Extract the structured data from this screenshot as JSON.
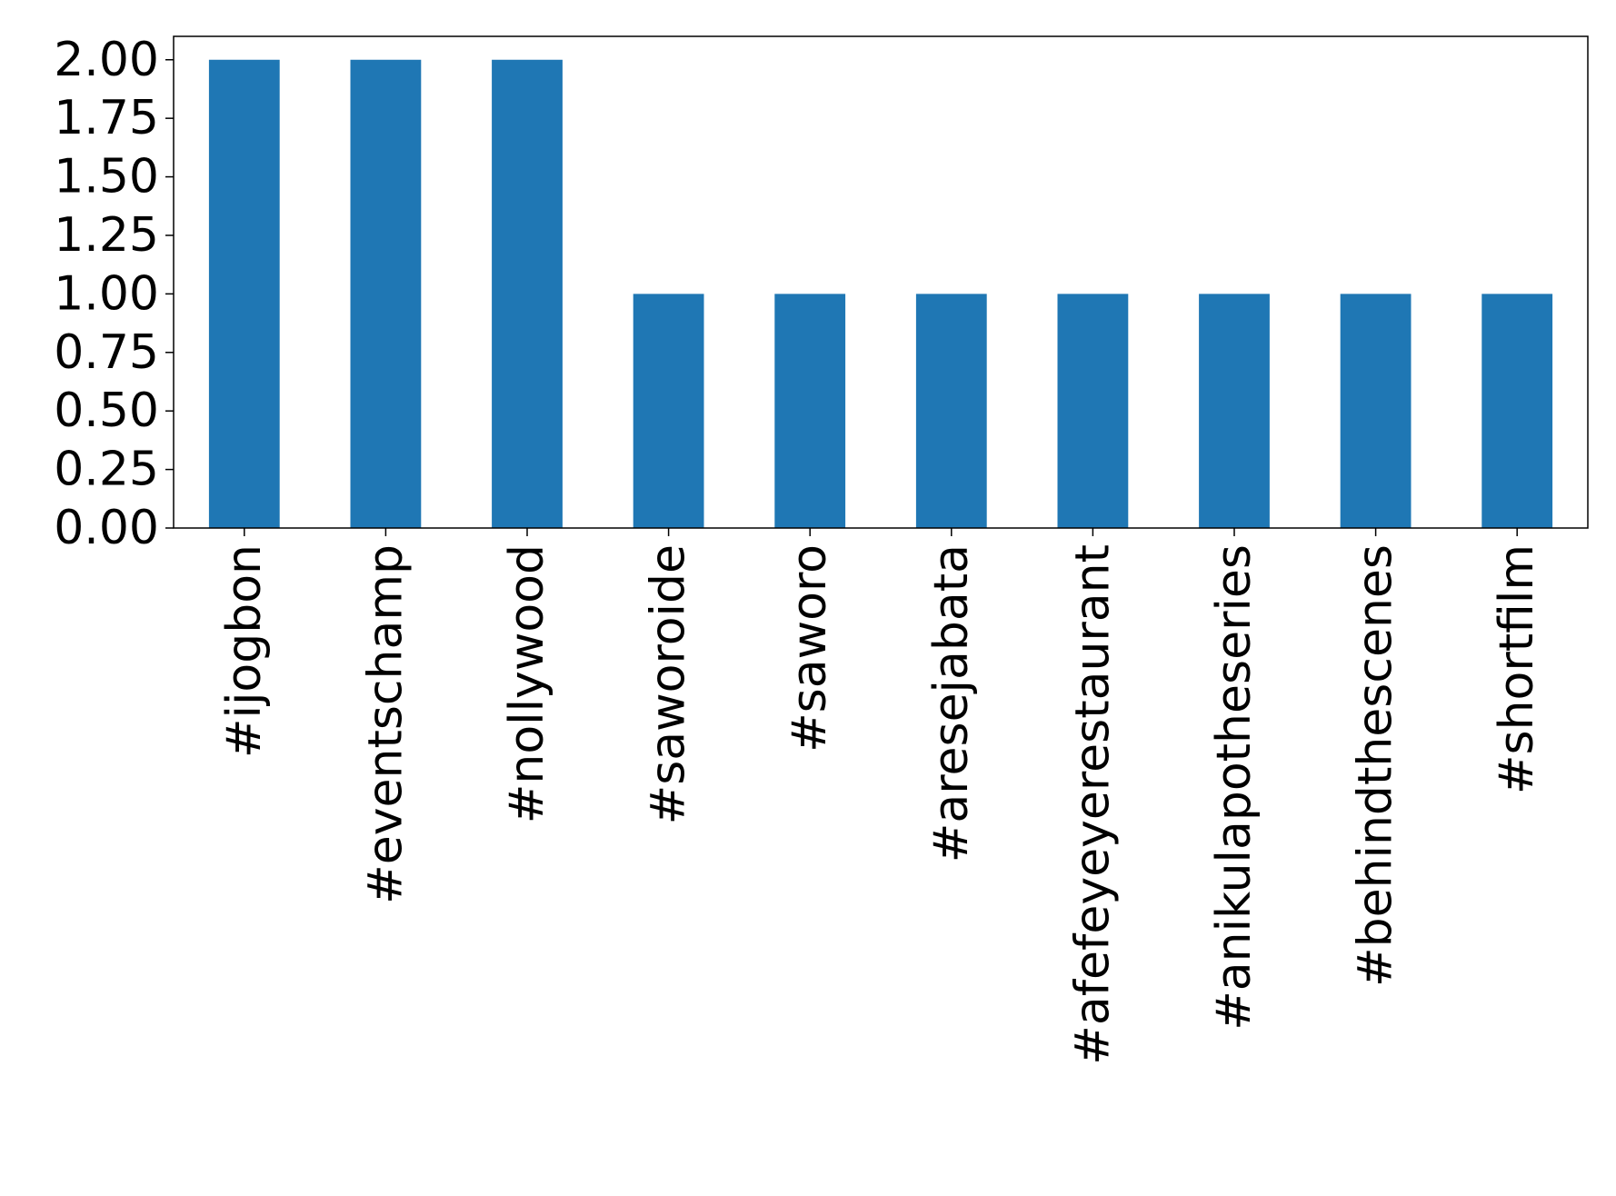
{
  "chart_data": {
    "type": "bar",
    "categories": [
      "#ijogbon",
      "#eventschamp",
      "#nollywood",
      "#saworoide",
      "#saworo",
      "#aresejabata",
      "#afefeyeyerestaurant",
      "#anikulapotheseries",
      "#behindthescenes",
      "#shortfilm"
    ],
    "values": [
      2,
      2,
      2,
      1,
      1,
      1,
      1,
      1,
      1,
      1
    ],
    "title": "",
    "xlabel": "",
    "ylabel": "",
    "ylim": [
      0,
      2.1
    ],
    "yticks": [
      0,
      0.25,
      0.5,
      0.75,
      1.0,
      1.25,
      1.5,
      1.75,
      2.0
    ],
    "ytick_labels": [
      "0.00",
      "0.25",
      "0.50",
      "0.75",
      "1.00",
      "1.25",
      "1.50",
      "1.75",
      "2.00"
    ],
    "bar_color": "#1f77b4",
    "grid": false,
    "legend": "none"
  }
}
